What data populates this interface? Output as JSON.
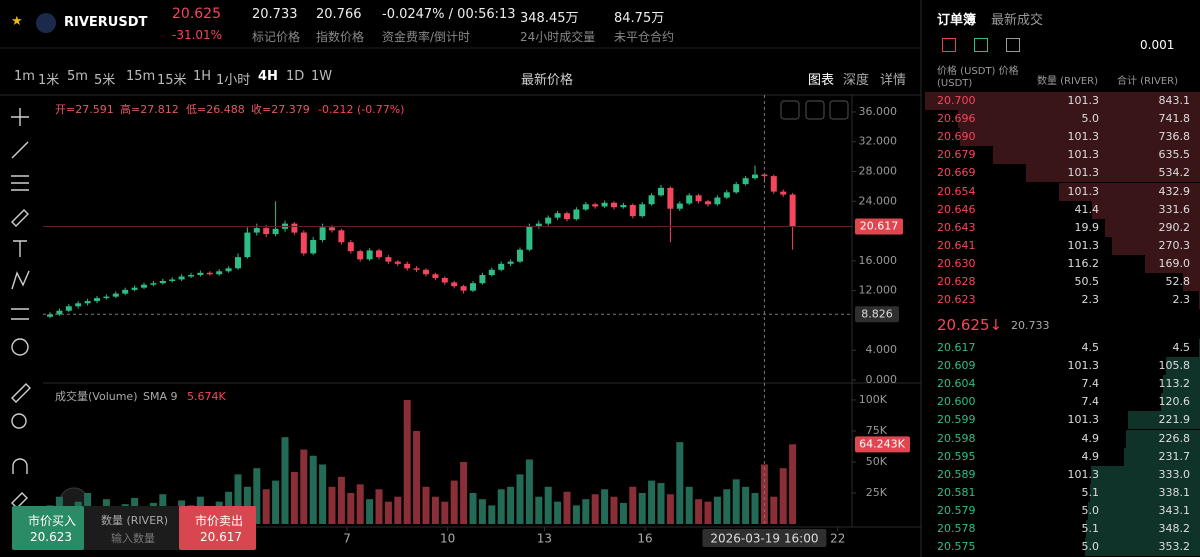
{
  "header": {
    "symbol": "RIVERUSDT",
    "last_price": "20.625",
    "change": "-31.01%",
    "stats": [
      {
        "value": "20.733",
        "label": "标记价格"
      },
      {
        "value": "20.766",
        "label": "指数价格"
      },
      {
        "value": "-0.0247% / 00:56:13",
        "label": "资金费率/倒计时"
      },
      {
        "value": "348.45万",
        "label": "24小时成交量"
      },
      {
        "value": "84.75万",
        "label": "未平仓合约"
      }
    ]
  },
  "toolbar": {
    "intervals": [
      "1m",
      "1米",
      "5m",
      "5米",
      "15m",
      "15米",
      "1H",
      "1小时",
      "4H",
      "1D",
      "1W"
    ],
    "active": "4H",
    "price_type": "最新价格",
    "views": [
      "图表",
      "深度",
      "详情"
    ]
  },
  "chart_data": {
    "type": "candlestick",
    "ohlc_legend": [
      "开=27.591",
      "高=27.812",
      "低=26.488",
      "收=27.379",
      "-0.212 (-0.77%)"
    ],
    "up_color": "#2ebd85",
    "down_color": "#f6465d",
    "candles": [
      [
        8.5,
        9.1,
        8.3,
        8.8
      ],
      [
        8.8,
        9.6,
        8.6,
        9.3
      ],
      [
        9.3,
        10.2,
        9.1,
        9.9
      ],
      [
        9.9,
        10.6,
        9.6,
        10.3
      ],
      [
        10.3,
        10.9,
        10.0,
        10.6
      ],
      [
        10.6,
        11.3,
        10.3,
        11.0
      ],
      [
        11.0,
        11.5,
        10.8,
        11.2
      ],
      [
        11.2,
        11.9,
        11.0,
        11.6
      ],
      [
        11.6,
        12.4,
        11.4,
        12.1
      ],
      [
        12.1,
        12.7,
        11.9,
        12.4
      ],
      [
        12.4,
        13.1,
        12.2,
        12.8
      ],
      [
        12.8,
        13.3,
        12.6,
        13.0
      ],
      [
        13.0,
        13.6,
        12.8,
        13.3
      ],
      [
        13.3,
        13.8,
        13.1,
        13.5
      ],
      [
        13.5,
        14.2,
        13.3,
        13.9
      ],
      [
        13.9,
        14.4,
        13.7,
        14.1
      ],
      [
        14.1,
        14.7,
        13.9,
        14.4
      ],
      [
        14.4,
        14.6,
        14.0,
        14.2
      ],
      [
        14.2,
        14.9,
        14.0,
        14.6
      ],
      [
        14.6,
        15.3,
        14.4,
        15.0
      ],
      [
        15.0,
        17.0,
        14.8,
        16.5
      ],
      [
        16.5,
        20.5,
        16.3,
        19.8
      ],
      [
        19.8,
        21.0,
        19.4,
        20.4
      ],
      [
        20.4,
        20.8,
        19.2,
        19.6
      ],
      [
        19.6,
        24.0,
        19.3,
        20.3
      ],
      [
        20.3,
        21.4,
        19.9,
        21.0
      ],
      [
        21.0,
        21.2,
        19.5,
        19.8
      ],
      [
        19.8,
        20.1,
        16.7,
        17.0
      ],
      [
        17.0,
        19.2,
        16.8,
        18.8
      ],
      [
        18.8,
        21.0,
        18.5,
        20.5
      ],
      [
        20.5,
        20.8,
        19.8,
        20.1
      ],
      [
        20.1,
        20.3,
        18.2,
        18.5
      ],
      [
        18.5,
        18.8,
        17.0,
        17.3
      ],
      [
        17.3,
        17.5,
        15.9,
        16.2
      ],
      [
        16.2,
        17.7,
        16.0,
        17.4
      ],
      [
        17.4,
        17.6,
        16.2,
        16.5
      ],
      [
        16.5,
        16.8,
        15.6,
        15.9
      ],
      [
        15.9,
        16.1,
        15.3,
        15.6
      ],
      [
        15.6,
        15.9,
        14.7,
        15.0
      ],
      [
        15.0,
        15.3,
        14.5,
        14.8
      ],
      [
        14.8,
        15.0,
        13.9,
        14.2
      ],
      [
        14.2,
        14.4,
        13.4,
        13.7
      ],
      [
        13.7,
        13.9,
        12.8,
        13.1
      ],
      [
        13.1,
        13.3,
        12.3,
        12.6
      ],
      [
        12.6,
        12.8,
        11.6,
        12.0
      ],
      [
        12.0,
        13.3,
        11.8,
        13.0
      ],
      [
        13.0,
        14.4,
        12.8,
        14.1
      ],
      [
        14.1,
        15.1,
        13.9,
        14.8
      ],
      [
        14.8,
        15.9,
        14.6,
        15.6
      ],
      [
        15.6,
        16.2,
        15.3,
        15.9
      ],
      [
        15.9,
        17.8,
        15.7,
        17.5
      ],
      [
        17.5,
        21.0,
        17.3,
        20.6
      ],
      [
        20.6,
        21.4,
        20.3,
        21.0
      ],
      [
        21.0,
        22.1,
        20.7,
        21.8
      ],
      [
        21.8,
        22.7,
        21.5,
        22.4
      ],
      [
        22.4,
        22.6,
        21.3,
        21.6
      ],
      [
        21.6,
        23.2,
        21.4,
        22.9
      ],
      [
        22.9,
        23.9,
        22.7,
        23.6
      ],
      [
        23.6,
        23.8,
        23.0,
        23.3
      ],
      [
        23.3,
        24.1,
        23.1,
        23.8
      ],
      [
        23.8,
        24.0,
        22.9,
        23.2
      ],
      [
        23.2,
        23.8,
        23.0,
        23.5
      ],
      [
        23.5,
        23.7,
        21.7,
        22.0
      ],
      [
        22.0,
        23.9,
        21.8,
        23.6
      ],
      [
        23.6,
        25.1,
        23.4,
        24.8
      ],
      [
        24.8,
        26.2,
        24.6,
        25.8
      ],
      [
        25.8,
        26.0,
        18.5,
        23.0
      ],
      [
        23.0,
        24.0,
        22.7,
        23.7
      ],
      [
        23.7,
        25.1,
        23.5,
        24.8
      ],
      [
        24.8,
        25.0,
        23.7,
        24.0
      ],
      [
        24.0,
        24.2,
        23.3,
        23.6
      ],
      [
        23.6,
        24.8,
        23.4,
        24.5
      ],
      [
        24.5,
        25.5,
        24.3,
        25.2
      ],
      [
        25.2,
        26.6,
        25.0,
        26.3
      ],
      [
        26.3,
        27.4,
        26.1,
        27.1
      ],
      [
        27.1,
        28.8,
        26.9,
        27.591
      ],
      [
        27.591,
        27.812,
        26.488,
        27.379
      ],
      [
        27.379,
        27.6,
        25.0,
        25.3
      ],
      [
        25.3,
        25.6,
        24.6,
        24.9
      ],
      [
        24.9,
        25.1,
        17.5,
        20.6
      ]
    ],
    "volume": {
      "name": "成交量(Volume)",
      "sma_label": "SMA 9",
      "sma_value": "5.674K",
      "values": [
        15000,
        22000,
        12000,
        18000,
        25000,
        14000,
        20000,
        9000,
        16000,
        21000,
        13000,
        17000,
        24000,
        11000,
        19000,
        15000,
        22000,
        10000,
        18000,
        26000,
        40000,
        30000,
        45000,
        28000,
        35000,
        70000,
        42000,
        60000,
        55000,
        48000,
        30000,
        38000,
        25000,
        32000,
        20000,
        28000,
        18000,
        22000,
        100000,
        75000,
        30000,
        22000,
        18000,
        35000,
        50000,
        25000,
        20000,
        15000,
        28000,
        30000,
        40000,
        52000,
        22000,
        30000,
        18000,
        26000,
        15000,
        20000,
        24000,
        28000,
        22000,
        17000,
        30000,
        25000,
        35000,
        33000,
        24000,
        66000,
        30000,
        20000,
        18000,
        22000,
        28000,
        36000,
        30000,
        25000,
        48000,
        22000,
        45000,
        64243
      ],
      "last_label": "64.243K"
    },
    "ylim": [
      0,
      37.6
    ],
    "yticks": [
      {
        "value": 0,
        "label": "0.000"
      },
      {
        "value": 4,
        "label": "4.000"
      },
      {
        "value": 12,
        "label": "12.000"
      },
      {
        "value": 16,
        "label": "16.000"
      },
      {
        "value": 24,
        "label": "24.000"
      },
      {
        "value": 28,
        "label": "28.000"
      },
      {
        "value": 32,
        "label": "32.000"
      },
      {
        "value": 36,
        "label": "36.000"
      }
    ],
    "vlim": [
      0,
      104000
    ],
    "vticks": [
      {
        "value": 25000,
        "label": "25K"
      },
      {
        "value": 50000,
        "label": "50K"
      },
      {
        "value": 75000,
        "label": "75K"
      },
      {
        "value": 100000,
        "label": "100K"
      }
    ],
    "xlim": [
      -0.5,
      84.3
    ],
    "xticks": [
      {
        "value": 31.6,
        "label": "7"
      },
      {
        "value": 42.3,
        "label": "10"
      },
      {
        "value": 52.6,
        "label": "13"
      },
      {
        "value": 63.3,
        "label": "16"
      },
      {
        "value": 83.8,
        "label": "22"
      }
    ],
    "last_price": 20.617,
    "crosshair": {
      "x": 76,
      "x_label": "2026-03-19  16:00",
      "price": 8.826
    },
    "grid": false
  },
  "order_book": {
    "tabs": [
      "订单簿",
      "最新成交"
    ],
    "tick_size": "0.001",
    "columns": [
      "价格 (USDT) 价格(USDT)",
      "数量 (RIVER)",
      "合计 (RIVER)"
    ],
    "asks": [
      [
        "20.700",
        "101.3",
        "843.1"
      ],
      [
        "20.696",
        "5.0",
        "741.8"
      ],
      [
        "20.690",
        "101.3",
        "736.8"
      ],
      [
        "20.679",
        "101.3",
        "635.5"
      ],
      [
        "20.669",
        "101.3",
        "534.2"
      ],
      [
        "20.654",
        "101.3",
        "432.9"
      ],
      [
        "20.646",
        "41.4",
        "331.6"
      ],
      [
        "20.643",
        "19.9",
        "290.2"
      ],
      [
        "20.641",
        "101.3",
        "270.3"
      ],
      [
        "20.630",
        "116.2",
        "169.0"
      ],
      [
        "20.628",
        "50.5",
        "52.8"
      ],
      [
        "20.623",
        "2.3",
        "2.3"
      ]
    ],
    "mid": {
      "price": "20.625↓",
      "mark": "20.733"
    },
    "bids": [
      [
        "20.617",
        "4.5",
        "4.5"
      ],
      [
        "20.609",
        "101.3",
        "105.8"
      ],
      [
        "20.604",
        "7.4",
        "113.2"
      ],
      [
        "20.600",
        "7.4",
        "120.6"
      ],
      [
        "20.599",
        "101.3",
        "221.9"
      ],
      [
        "20.598",
        "4.9",
        "226.8"
      ],
      [
        "20.595",
        "4.9",
        "231.7"
      ],
      [
        "20.589",
        "101.3",
        "333.0"
      ],
      [
        "20.581",
        "5.1",
        "338.1"
      ],
      [
        "20.579",
        "5.0",
        "343.1"
      ],
      [
        "20.578",
        "5.1",
        "348.2"
      ],
      [
        "20.575",
        "5.0",
        "353.2"
      ]
    ]
  },
  "trade": {
    "buy_label": "市价买入",
    "buy_price": "20.623",
    "qty_label": "数量 (RIVER)",
    "qty_placeholder": "输入数量",
    "sell_label": "市价卖出",
    "sell_price": "20.617"
  }
}
